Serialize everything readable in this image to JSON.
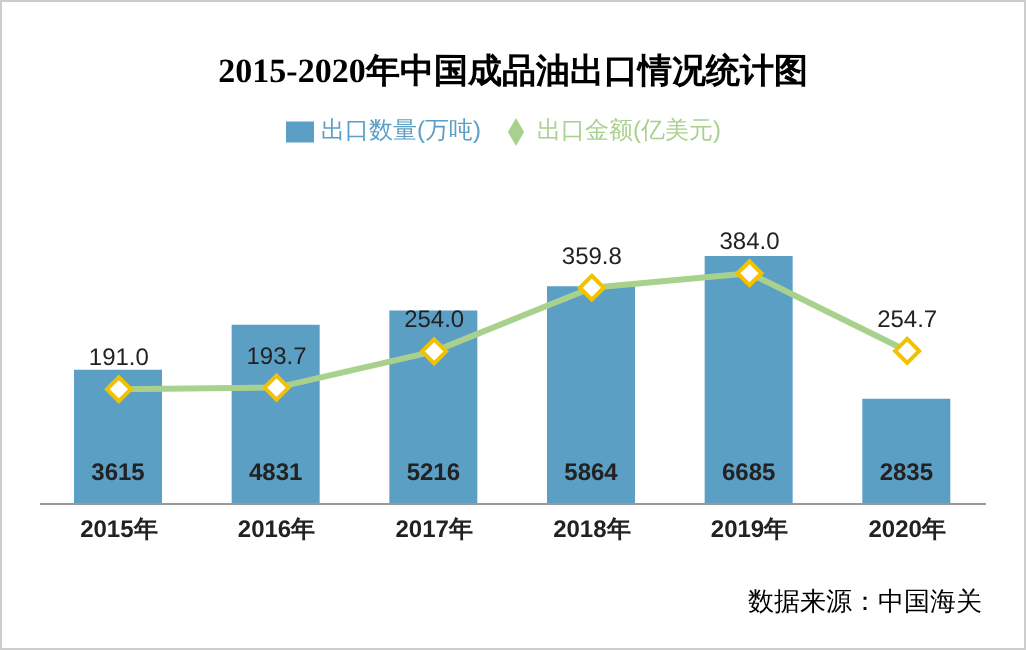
{
  "chart_data": {
    "type": "bar",
    "title": "2015-2020年中国成品油出口情况统计图",
    "categories": [
      "2015年",
      "2016年",
      "2017年",
      "2018年",
      "2019年",
      "2020年"
    ],
    "series": [
      {
        "name": "出口数量(万吨)",
        "color": "#5b9fc4",
        "values": [
          3615,
          4831,
          5216,
          5864,
          6685,
          2835
        ]
      },
      {
        "name": "出口金额(亿美元)",
        "type": "line",
        "axis": "y2",
        "color": "#a9d18e",
        "values": [
          191.0,
          193.7,
          254.0,
          359.8,
          384.0,
          254.7
        ],
        "value_labels": [
          "191.0",
          "193.7",
          "254.0",
          "359.8",
          "384.0",
          "254.7"
        ]
      }
    ],
    "tick_labels": "x",
    "data_labels": true,
    "legend": "top",
    "marker": "diamond",
    "grid": false,
    "annotations": [
      "数据来源：中国海关"
    ]
  }
}
